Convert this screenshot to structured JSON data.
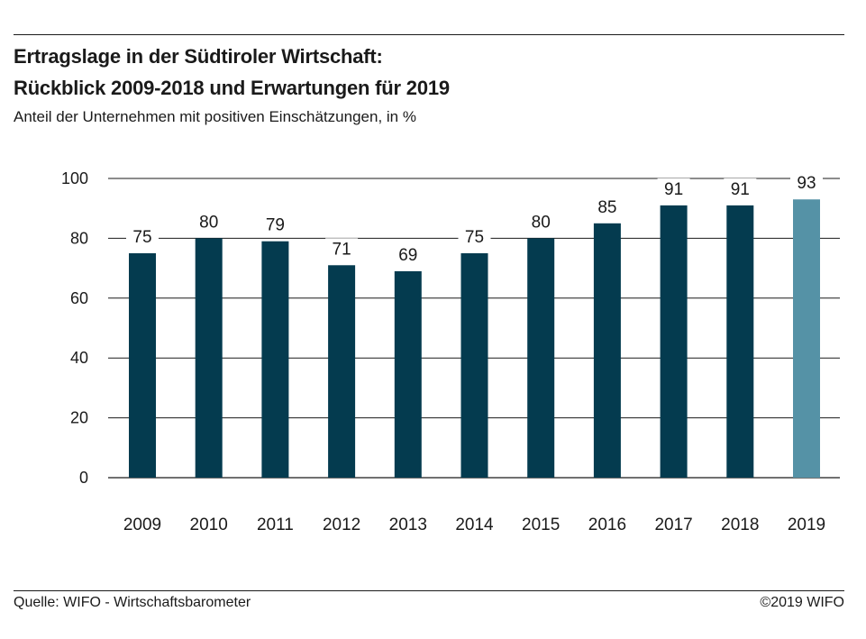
{
  "header": {
    "title_line1": "Ertragslage in der Südtiroler Wirtschaft:",
    "title_line2": "Rückblick 2009-2018 und Erwartungen für 2019",
    "subtitle": "Anteil der Unternehmen mit positiven Einschätzungen, in %"
  },
  "footer": {
    "source": "Quelle: WIFO - Wirtschaftsbarometer",
    "copyright": "©2019 WIFO"
  },
  "colors": {
    "bar_actual": "#043b4f",
    "bar_expected": "#5592a6",
    "grid": "#1a1a1a"
  },
  "chart_data": {
    "type": "bar",
    "title": "Ertragslage in der Südtiroler Wirtschaft: Rückblick 2009-2018 und Erwartungen für 2019",
    "subtitle": "Anteil der Unternehmen mit positiven Einschätzungen, in %",
    "categories": [
      "2009",
      "2010",
      "2011",
      "2012",
      "2013",
      "2014",
      "2015",
      "2016",
      "2017",
      "2018",
      "2019"
    ],
    "values": [
      75,
      80,
      79,
      71,
      69,
      75,
      80,
      85,
      91,
      91,
      93
    ],
    "highlighted": [
      false,
      false,
      false,
      false,
      false,
      false,
      false,
      false,
      false,
      false,
      true
    ],
    "ylim": [
      0,
      100
    ],
    "yticks": [
      0,
      20,
      40,
      60,
      80,
      100
    ],
    "grid": true,
    "xlabel": "",
    "ylabel": ""
  }
}
